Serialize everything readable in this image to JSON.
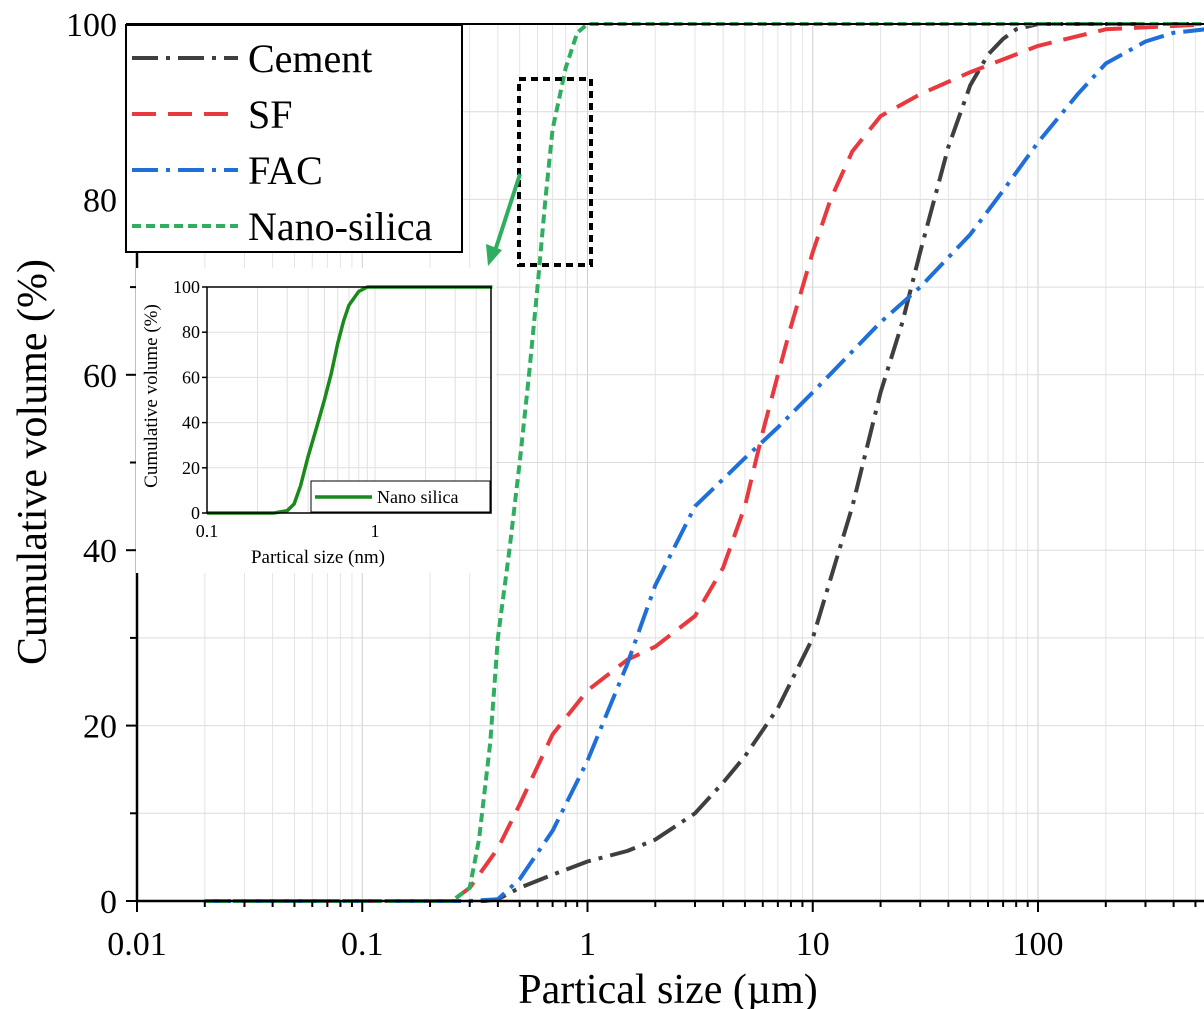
{
  "chart_data": [
    {
      "type": "line",
      "xlabel": "Partical size (µm)",
      "ylabel": "Cumulative volume (%)",
      "xscale": "log",
      "xlim": [
        0.01,
        600
      ],
      "ylim": [
        0,
        100
      ],
      "x_ticks": [
        {
          "value": 0.01,
          "label": "0.01"
        },
        {
          "value": 0.1,
          "label": "0.1"
        },
        {
          "value": 1,
          "label": "1"
        },
        {
          "value": 10,
          "label": "10"
        },
        {
          "value": 100,
          "label": "100"
        }
      ],
      "y_ticks": [
        {
          "value": 0,
          "label": "0"
        },
        {
          "value": 20,
          "label": "20"
        },
        {
          "value": 40,
          "label": "40"
        },
        {
          "value": 60,
          "label": "60"
        },
        {
          "value": 80,
          "label": "80"
        },
        {
          "value": 100,
          "label": "100"
        }
      ],
      "grid": true,
      "legend_position": "top-left",
      "series": [
        {
          "name": "Cement",
          "color": "#3f3f3f",
          "dash": "dashdot",
          "points": [
            [
              0.02,
              0
            ],
            [
              0.1,
              0
            ],
            [
              0.25,
              0
            ],
            [
              0.35,
              0
            ],
            [
              0.4,
              0.2
            ],
            [
              0.5,
              1.5
            ],
            [
              0.7,
              3
            ],
            [
              1,
              4.5
            ],
            [
              1.5,
              5.7
            ],
            [
              2,
              7
            ],
            [
              3,
              10
            ],
            [
              4,
              13.5
            ],
            [
              5,
              16.5
            ],
            [
              7,
              22
            ],
            [
              10,
              30
            ],
            [
              15,
              45
            ],
            [
              20,
              58
            ],
            [
              25,
              66
            ],
            [
              30,
              74
            ],
            [
              40,
              86
            ],
            [
              50,
              93
            ],
            [
              60,
              96.5
            ],
            [
              70,
              98.3
            ],
            [
              80,
              99.4
            ],
            [
              100,
              100
            ],
            [
              600,
              100
            ]
          ]
        },
        {
          "name": "SF",
          "color": "#e8393f",
          "dash": "dash",
          "points": [
            [
              0.02,
              0
            ],
            [
              0.1,
              0
            ],
            [
              0.25,
              0
            ],
            [
              0.3,
              1.5
            ],
            [
              0.4,
              6
            ],
            [
              0.5,
              11
            ],
            [
              0.7,
              19
            ],
            [
              1,
              24
            ],
            [
              1.5,
              27.5
            ],
            [
              2,
              29
            ],
            [
              3,
              32.5
            ],
            [
              4,
              38
            ],
            [
              5,
              45
            ],
            [
              6,
              53.5
            ],
            [
              7,
              60
            ],
            [
              8,
              65.5
            ],
            [
              10,
              74
            ],
            [
              12,
              80
            ],
            [
              15,
              85.5
            ],
            [
              20,
              89.5
            ],
            [
              30,
              92
            ],
            [
              50,
              94.5
            ],
            [
              100,
              97.5
            ],
            [
              200,
              99.4
            ],
            [
              600,
              100
            ]
          ]
        },
        {
          "name": "FAC",
          "color": "#1f6fd8",
          "dash": "dashdot",
          "points": [
            [
              0.02,
              0
            ],
            [
              0.1,
              0
            ],
            [
              0.3,
              0
            ],
            [
              0.4,
              0.2
            ],
            [
              0.5,
              2.5
            ],
            [
              0.7,
              8
            ],
            [
              1,
              16
            ],
            [
              1.5,
              27
            ],
            [
              2,
              36
            ],
            [
              3,
              45
            ],
            [
              5,
              50.5
            ],
            [
              7,
              54
            ],
            [
              10,
              58
            ],
            [
              20,
              66
            ],
            [
              30,
              70
            ],
            [
              50,
              76
            ],
            [
              70,
              81
            ],
            [
              100,
              86.5
            ],
            [
              150,
              92
            ],
            [
              200,
              95.5
            ],
            [
              300,
              98
            ],
            [
              400,
              99
            ],
            [
              600,
              99.5
            ]
          ]
        },
        {
          "name": "Nano-silica",
          "color": "#2fae5f",
          "dash": "dot",
          "points": [
            [
              0.02,
              0
            ],
            [
              0.1,
              0
            ],
            [
              0.25,
              0
            ],
            [
              0.3,
              1.5
            ],
            [
              0.33,
              7
            ],
            [
              0.37,
              18
            ],
            [
              0.4,
              30
            ],
            [
              0.45,
              40
            ],
            [
              0.5,
              50
            ],
            [
              0.55,
              60
            ],
            [
              0.6,
              70
            ],
            [
              0.65,
              80
            ],
            [
              0.7,
              88
            ],
            [
              0.8,
              95
            ],
            [
              0.9,
              99
            ],
            [
              1,
              100
            ],
            [
              600,
              100
            ]
          ]
        }
      ],
      "annotation": "zoom-box-and-arrow"
    },
    {
      "type": "line",
      "xlabel": "Partical size (nm)",
      "ylabel": "Cumulative volume (%)",
      "xscale": "log",
      "xlim": [
        0.1,
        5
      ],
      "ylim": [
        0,
        100
      ],
      "x_ticks": [
        {
          "value": 0.1,
          "label": "0.1"
        },
        {
          "value": 1,
          "label": "1"
        }
      ],
      "y_ticks": [
        {
          "value": 0,
          "label": "0"
        },
        {
          "value": 20,
          "label": "20"
        },
        {
          "value": 40,
          "label": "40"
        },
        {
          "value": 60,
          "label": "60"
        },
        {
          "value": 80,
          "label": "80"
        },
        {
          "value": 100,
          "label": "100"
        }
      ],
      "grid": true,
      "legend_position": "bottom-right",
      "series": [
        {
          "name": "Nano silica",
          "color": "#1a8a1a",
          "dash": "solid",
          "points": [
            [
              0.1,
              0
            ],
            [
              0.25,
              0
            ],
            [
              0.3,
              1
            ],
            [
              0.33,
              4
            ],
            [
              0.36,
              12
            ],
            [
              0.4,
              25
            ],
            [
              0.45,
              38
            ],
            [
              0.5,
              50
            ],
            [
              0.55,
              62
            ],
            [
              0.6,
              75
            ],
            [
              0.65,
              85
            ],
            [
              0.7,
              92
            ],
            [
              0.8,
              98
            ],
            [
              0.9,
              100
            ],
            [
              5,
              100
            ]
          ]
        }
      ]
    }
  ]
}
